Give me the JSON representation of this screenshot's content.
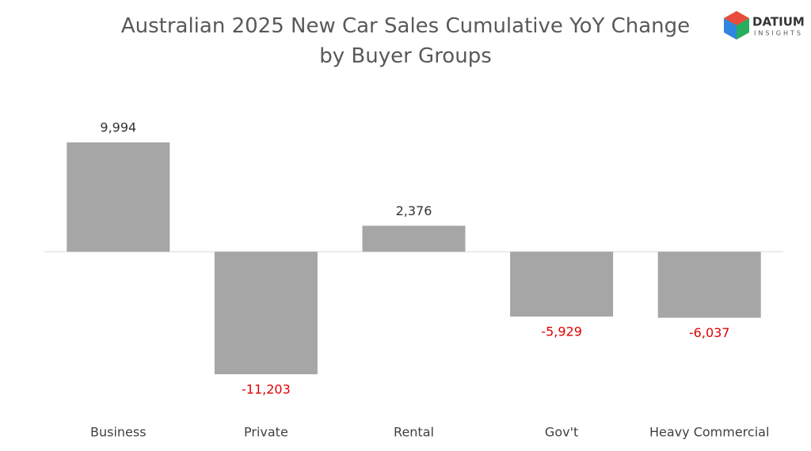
{
  "chart_data": {
    "type": "bar",
    "title": "Australian 2025 New Car Sales Cumulative YoY Change by Buyer Groups",
    "categories": [
      "Business",
      "Private",
      "Rental",
      "Gov't",
      "Heavy Commercial"
    ],
    "values": [
      9994,
      -11203,
      2376,
      -5929,
      -6037
    ],
    "value_labels": [
      "9,994",
      "-11,203",
      "2,376",
      "-5,929",
      "-6,037"
    ],
    "color": "#a6a6a6",
    "label_color": "#333333",
    "negative_label_color": "#e00000"
  },
  "logo": {
    "name": "DATIUM",
    "tagline": "INSIGHTS"
  }
}
